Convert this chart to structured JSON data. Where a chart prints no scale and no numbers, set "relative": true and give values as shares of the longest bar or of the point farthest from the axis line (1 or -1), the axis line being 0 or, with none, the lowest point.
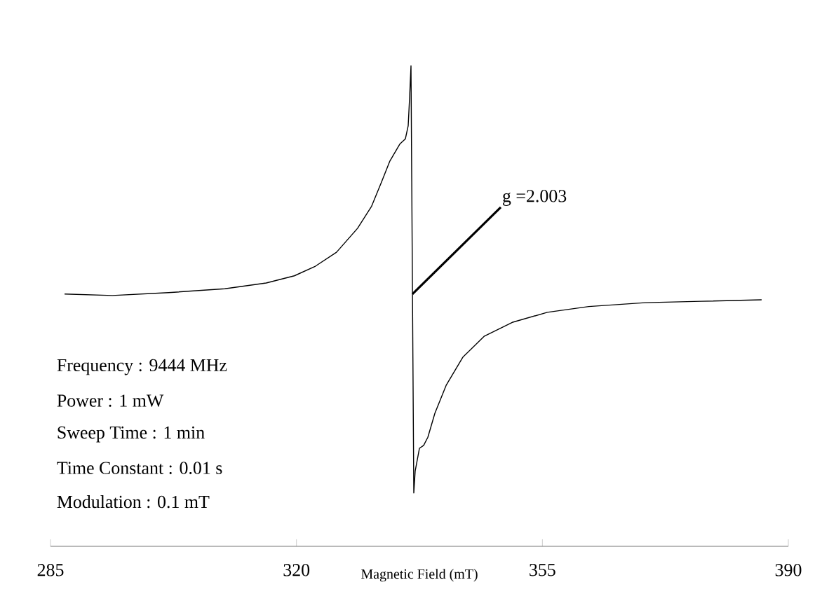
{
  "chart_data": {
    "type": "line",
    "relative": true,
    "xlabel": "Magnetic Field (mT)",
    "xlim": [
      285,
      390
    ],
    "xticks": [
      285,
      320,
      355,
      390
    ],
    "x": [
      287.0,
      293.8,
      301.8,
      309.8,
      315.7,
      319.7,
      322.7,
      325.7,
      328.7,
      330.7,
      332.1,
      333.3,
      334.7,
      335.5,
      335.9,
      336.1,
      336.3,
      336.5,
      336.7,
      336.9,
      337.5,
      338.1,
      338.7,
      339.7,
      341.3,
      343.7,
      346.7,
      350.7,
      355.7,
      361.6,
      369.6,
      377.6,
      386.2
    ],
    "values": [
      0.525,
      0.522,
      0.528,
      0.536,
      0.548,
      0.563,
      0.583,
      0.612,
      0.662,
      0.708,
      0.758,
      0.802,
      0.837,
      0.848,
      0.875,
      0.933,
      1.0,
      0.554,
      0.111,
      0.157,
      0.204,
      0.21,
      0.227,
      0.277,
      0.335,
      0.394,
      0.437,
      0.466,
      0.487,
      0.499,
      0.507,
      0.51,
      0.513
    ],
    "color": "#000000",
    "annotations": [
      {
        "text": "g =2.003",
        "x": 336.5,
        "y": 0.525
      },
      "Frequency : 9444 MHz",
      "Power : 1 mW",
      "Sweep Time : 1 min",
      "Time Constant : 0.01 s",
      "Modulation : 0.1 mT"
    ]
  }
}
